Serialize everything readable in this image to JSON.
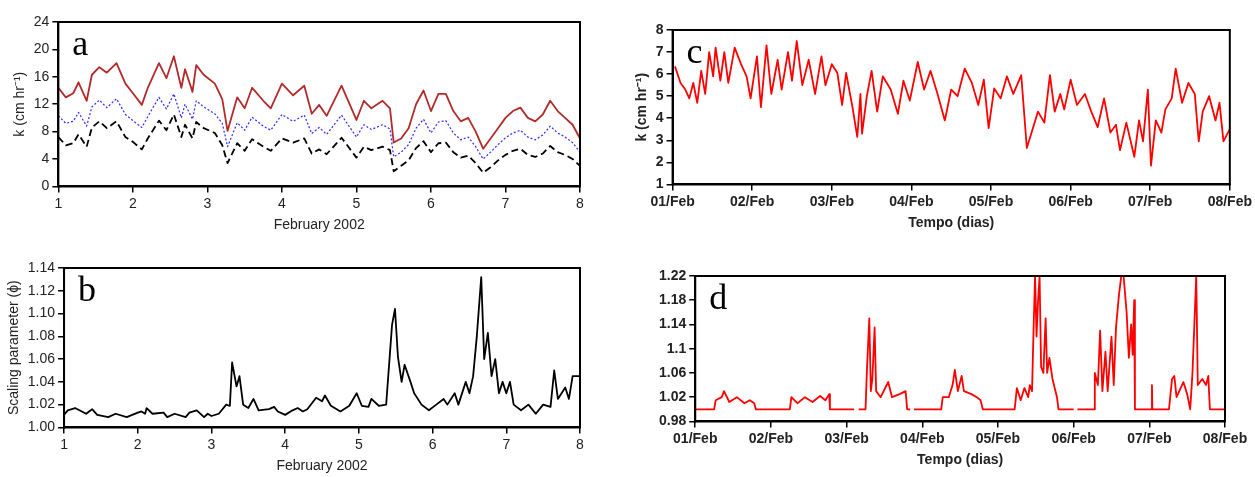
{
  "chart_data": [
    {
      "type": "line",
      "xlabel": "February 2002",
      "ylabel": "k (cm hr⁻¹)",
      "annotations": [
        "a"
      ],
      "xlim": [
        1,
        8
      ],
      "xticks": [
        1,
        2,
        3,
        4,
        5,
        6,
        7,
        8
      ],
      "ylim": [
        0,
        24
      ],
      "yticks": [
        0,
        4,
        8,
        12,
        16,
        20,
        24
      ],
      "grid": false,
      "x": [
        1,
        1.1,
        1.2,
        1.27,
        1.38,
        1.45,
        1.55,
        1.65,
        1.78,
        1.9,
        2,
        2.12,
        2.2,
        2.35,
        2.45,
        2.55,
        2.65,
        2.7,
        2.8,
        2.85,
        2.95,
        3.1,
        3.2,
        3.27,
        3.4,
        3.5,
        3.6,
        3.75,
        3.85,
        4,
        4.15,
        4.3,
        4.4,
        4.5,
        4.6,
        4.8,
        5,
        5.1,
        5.2,
        5.35,
        5.45,
        5.5,
        5.6,
        5.7,
        5.8,
        5.9,
        6,
        6.1,
        6.2,
        6.3,
        6.4,
        6.5,
        6.6,
        6.7,
        6.8,
        6.9,
        7,
        7.1,
        7.2,
        7.3,
        7.4,
        7.5,
        7.6,
        7.7,
        7.8,
        7.9,
        8
      ],
      "series": [
        {
          "color": "#b22a2a",
          "line_style": "solid",
          "values": [
            14.4,
            13,
            13.6,
            15.2,
            12.5,
            16.3,
            17.4,
            16.6,
            18,
            15,
            13.6,
            11.9,
            14.4,
            18,
            15.8,
            19,
            14.4,
            17.1,
            13.8,
            17.7,
            16.3,
            15,
            12.7,
            8.1,
            13,
            11.4,
            14.4,
            12.5,
            11.4,
            15,
            13.3,
            14.7,
            10.6,
            11.9,
            10.3,
            14.7,
            9.7,
            12.5,
            11.4,
            12.5,
            11.4,
            6.4,
            7,
            8.5,
            12,
            14,
            11,
            13.5,
            13.5,
            11,
            9.5,
            10,
            8,
            5.5,
            7,
            8.5,
            10,
            11,
            11.5,
            10,
            9.5,
            10.5,
            12.5,
            11,
            10,
            9,
            7
          ]
        },
        {
          "color": "#2a2aff",
          "line_style": "dotted",
          "values": [
            10.3,
            9.2,
            9.5,
            10.8,
            8.8,
            11.6,
            12.6,
            11.5,
            12.8,
            10.5,
            9.6,
            8.6,
            10.2,
            13,
            11.3,
            13.5,
            10,
            12,
            9.8,
            12.5,
            11.6,
            10.6,
            9.2,
            5.8,
            9.3,
            8.2,
            10.1,
            8.8,
            8.2,
            10.5,
            9.5,
            10.4,
            7.7,
            8.6,
            7.6,
            10.4,
            7.2,
            9,
            8.3,
            9,
            8.4,
            4.3,
            5,
            6.1,
            8.5,
            9.8,
            7.8,
            9.4,
            9.6,
            7.8,
            6.8,
            7.2,
            5.8,
            4,
            5,
            6.1,
            7.1,
            7.8,
            8.2,
            7.2,
            6.8,
            7.5,
            8.8,
            7.8,
            7.2,
            6.4,
            5
          ]
        },
        {
          "color": "#000000",
          "line_style": "dashed",
          "values": [
            7.2,
            6,
            6.3,
            7.6,
            5.8,
            8.6,
            9.5,
            8.5,
            9.5,
            7.2,
            6.5,
            5.4,
            7,
            9.6,
            8.2,
            10.5,
            7.2,
            9,
            7,
            9.4,
            8.5,
            7.8,
            6,
            3.4,
            6.3,
            5.2,
            6.9,
            5.8,
            5.2,
            7,
            6.4,
            7,
            4.8,
            5.4,
            4.7,
            7.1,
            4.2,
            5.8,
            5.3,
            5.8,
            5.3,
            2.2,
            3,
            3.8,
            5.6,
            6.6,
            5,
            6.3,
            6.4,
            5,
            4.2,
            4.5,
            3.4,
            2,
            2.8,
            3.8,
            4.6,
            5.2,
            5.5,
            4.6,
            4.3,
            4.8,
            5.9,
            5,
            4.6,
            4,
            3
          ]
        }
      ]
    },
    {
      "type": "line",
      "xlabel": "February 2002",
      "ylabel": "Scaling parameter (ϕ)",
      "annotations": [
        "b"
      ],
      "xlim": [
        1,
        8
      ],
      "xticks": [
        1,
        2,
        3,
        4,
        5,
        6,
        7,
        8
      ],
      "ylim": [
        1,
        1.14
      ],
      "yticks": [
        {
          "value": 1,
          "label": "1.00"
        },
        1.02,
        1.04,
        1.06,
        1.08,
        {
          "value": 1.1,
          "label": "1.10"
        },
        1.12,
        1.14
      ],
      "grid": false,
      "x": [
        1,
        1.05,
        1.15,
        1.3,
        1.38,
        1.45,
        1.6,
        1.7,
        1.85,
        2,
        2.05,
        2.1,
        2.12,
        2.2,
        2.35,
        2.4,
        2.5,
        2.65,
        2.7,
        2.8,
        2.9,
        2.95,
        3,
        3.1,
        3.2,
        3.25,
        3.28,
        3.34,
        3.38,
        3.43,
        3.5,
        3.57,
        3.64,
        3.78,
        3.85,
        3.9,
        4,
        4.1,
        4.17,
        4.24,
        4.3,
        4.42,
        4.5,
        4.54,
        4.62,
        4.75,
        4.87,
        4.97,
        5.04,
        5.13,
        5.17,
        5.27,
        5.37,
        5.45,
        5.49,
        5.53,
        5.58,
        5.62,
        5.7,
        5.75,
        5.85,
        5.95,
        6.05,
        6.15,
        6.2,
        6.3,
        6.35,
        6.45,
        6.5,
        6.55,
        6.6,
        6.66,
        6.7,
        6.75,
        6.8,
        6.85,
        6.9,
        6.95,
        7,
        7.05,
        7.1,
        7.2,
        7.3,
        7.4,
        7.5,
        7.6,
        7.65,
        7.7,
        7.8,
        7.85,
        7.9,
        8
      ],
      "series": [
        {
          "color": "#000000",
          "values": [
            1.011,
            1.015,
            1.017,
            1.012,
            1.016,
            1.011,
            1.009,
            1.012,
            1.009,
            1.013,
            1.014,
            1.012,
            1.017,
            1.012,
            1.013,
            1.009,
            1.012,
            1.009,
            1.013,
            1.015,
            1.009,
            1.012,
            1.01,
            1.012,
            1.02,
            1.019,
            1.057,
            1.036,
            1.045,
            1.02,
            1.017,
            1.025,
            1.015,
            1.016,
            1.018,
            1.014,
            1.011,
            1.015,
            1.017,
            1.014,
            1.016,
            1.026,
            1.023,
            1.028,
            1.019,
            1.014,
            1.019,
            1.03,
            1.019,
            1.018,
            1.025,
            1.019,
            1.02,
            1.09,
            1.104,
            1.062,
            1.04,
            1.055,
            1.04,
            1.03,
            1.02,
            1.015,
            1.02,
            1.025,
            1.02,
            1.03,
            1.02,
            1.04,
            1.03,
            1.045,
            1.08,
            1.132,
            1.06,
            1.083,
            1.045,
            1.06,
            1.03,
            1.04,
            1.03,
            1.04,
            1.02,
            1.015,
            1.02,
            1.012,
            1.02,
            1.018,
            1.05,
            1.025,
            1.035,
            1.025,
            1.045,
            1.045
          ]
        }
      ]
    },
    {
      "type": "line",
      "xlabel": "Tempo (dias)",
      "ylabel": "k (cm hr⁻¹)",
      "annotations": [
        "c"
      ],
      "xlim": [
        "--02-01",
        "--02-08"
      ],
      "xticks": [
        {
          "value": "--02-01",
          "label": "01/Feb"
        },
        {
          "value": "--02-02",
          "label": "02/Feb"
        },
        {
          "value": "--02-03",
          "label": "03/Feb"
        },
        {
          "value": "--02-04",
          "label": "04/Feb"
        },
        {
          "value": "--02-05",
          "label": "05/Feb"
        },
        {
          "value": "--02-06",
          "label": "06/Feb"
        },
        {
          "value": "--02-07",
          "label": "07/Feb"
        },
        {
          "value": "--02-08",
          "label": "08/Feb"
        }
      ],
      "ylim": [
        1,
        8
      ],
      "yticks": [
        1,
        2,
        3,
        4,
        5,
        6,
        7,
        8
      ],
      "grid": false,
      "x": [
        "--02-01T00:43",
        "--02-01T02:24",
        "--02-01T03:50",
        "--02-01T05:02",
        "--02-01T06:14",
        "--02-01T07:26",
        "--02-01T08:38",
        "--02-01T09:50",
        "--02-01T11:02",
        "--02-01T12:14",
        "--02-01T12:58",
        "--02-01T14:24",
        "--02-01T15:36",
        "--02-01T16:48",
        "--02-01T18:43",
        "--02-01T20:38",
        "--02-01T22:19",
        "--02-01T23:31",
        "--02-02T01:26",
        "--02-02T02:38",
        "--02-02T04:19",
        "--02-02T05:46",
        "--02-02T07:41",
        "--02-02T08:53",
        "--02-02T10:48",
        "--02-02T12:00",
        "--02-02T13:26",
        "--02-02T15:07",
        "--02-02T17:02",
        "--02-02T18:58",
        "--02-02T20:53",
        "--02-02T22:05",
        "--02-03T00:00",
        "--02-03T01:41",
        "--02-03T03:07",
        "--02-03T04:19",
        "--02-03T06:14",
        "--02-03T07:41",
        "--02-03T08:38",
        "--02-03T09:07",
        "--02-03T10:34",
        "--02-03T12:00",
        "--02-03T13:41",
        "--02-03T15:22",
        "--02-03T17:46",
        "--02-03T19:55",
        "--02-03T21:36",
        "--02-03T23:31",
        "--02-04T01:55",
        "--02-04T03:50",
        "--02-04T05:46",
        "--02-04T07:41",
        "--02-04T10:05",
        "--02-04T12:00",
        "--02-04T13:55",
        "--02-04T16:05",
        "--02-04T18:14",
        "--02-04T20:10",
        "--02-04T21:50",
        "--02-04T23:17",
        "--02-05T00:58",
        "--02-05T02:53",
        "--02-05T04:48",
        "--02-05T06:43",
        "--02-05T09:07",
        "--02-05T10:48",
        "--02-05T12:14",
        "--02-05T14:10",
        "--02-05T16:05",
        "--02-05T17:46",
        "--02-05T19:12",
        "--02-05T20:53",
        "--02-05T22:05",
        "--02-06T00:00",
        "--02-06T01:55",
        "--02-06T04:19",
        "--02-06T06:14",
        "--02-06T08:10",
        "--02-06T10:05",
        "--02-06T12:00",
        "--02-06T13:41",
        "--02-06T14:53",
        "--02-06T16:48",
        "--02-06T19:12",
        "--02-06T20:38",
        "--02-06T21:50",
        "--02-06T23:17",
        "--02-07T00:14",
        "--02-07T01:41",
        "--02-07T03:22",
        "--02-07T04:34",
        "--02-07T06:29",
        "--02-07T07:41",
        "--02-07T09:36",
        "--02-07T11:31",
        "--02-07T13:26",
        "--02-07T14:38",
        "--02-07T15:50",
        "--02-07T17:46",
        "--02-07T19:41",
        "--02-07T20:53",
        "--02-07T22:05",
        "--02-08T00:00"
      ],
      "series": [
        {
          "color": "#ff0000",
          "values": [
            6.35,
            5.6,
            5.3,
            4.9,
            5.6,
            4.7,
            6.15,
            5.1,
            7,
            5.9,
            7.2,
            5.7,
            7,
            5.6,
            7.2,
            6.45,
            5.9,
            4.9,
            6.8,
            4.5,
            7.3,
            5.1,
            6.65,
            5.3,
            7,
            5.7,
            7.5,
            5.5,
            6.65,
            5.1,
            6.8,
            5.5,
            6.45,
            6.05,
            4.6,
            6.05,
            4.5,
            3.15,
            5.1,
            3.3,
            5,
            6.15,
            4.3,
            5.9,
            5.3,
            4.2,
            5.7,
            4.8,
            6.55,
            5.3,
            6.15,
            5.2,
            3.9,
            5.3,
            5,
            6.25,
            5.6,
            4.6,
            5.75,
            3.55,
            5.35,
            4.9,
            5.9,
            5.1,
            5.95,
            2.65,
            3.35,
            4.3,
            3.8,
            5.95,
            4.3,
            5.1,
            4.4,
            5.75,
            4.6,
            5.1,
            4.3,
            3.6,
            4.9,
            3.35,
            3.7,
            2.55,
            3.8,
            2.25,
            3.9,
            2.95,
            5.3,
            1.85,
            3.9,
            3.35,
            4.4,
            4.9,
            6.25,
            4.7,
            5.6,
            5.1,
            2.95,
            4.3,
            5,
            3.9,
            4.7,
            2.95,
            3.5
          ]
        }
      ]
    },
    {
      "type": "line",
      "xlabel": "Tempo (dias)",
      "annotations": [
        "d"
      ],
      "xlim": [
        "--02-01",
        "--02-08"
      ],
      "xticks": [
        {
          "value": "--02-01",
          "label": "01/Feb"
        },
        {
          "value": "--02-02",
          "label": "02/Feb"
        },
        {
          "value": "--02-03",
          "label": "03/Feb"
        },
        {
          "value": "--02-04",
          "label": "04/Feb"
        },
        {
          "value": "--02-05",
          "label": "05/Feb"
        },
        {
          "value": "--02-06",
          "label": "06/Feb"
        },
        {
          "value": "--02-07",
          "label": "07/Feb"
        },
        {
          "value": "--02-08",
          "label": "08/Feb"
        }
      ],
      "ylim": [
        0.98,
        1.22
      ],
      "yticks": [
        0.98,
        1.02,
        1.06,
        1.1,
        1.14,
        1.18,
        1.22
      ],
      "grid": false,
      "x": [
        "--02-01T00:00",
        "--02-01T06:00",
        "--02-01T06:29",
        "--02-01T08:24",
        "--02-01T09:07",
        "--02-01T10:48",
        "--02-01T13:12",
        "--02-01T15:36",
        "--02-01T17:17",
        "--02-01T18:43",
        "--02-01T19:12",
        "--02-02T06:00",
        "--02-02T06:29",
        "--02-02T08:24",
        "--02-02T10:48",
        "--02-02T13:12",
        "--02-02T15:36",
        "--02-02T17:17",
        "--02-02T18:29",
        "--02-02T18:43",
        "--02-03T02:24",
        "--02-03T03:07",
        "--02-03T03:50",
        "--02-03T06:00",
        "--02-03T06:29",
        "--02-03T07:12",
        "--02-03T07:41",
        "--02-03T08:10",
        "--02-03T08:53",
        "--02-03T09:22",
        "--02-03T10:48",
        "--02-03T13:12",
        "--02-03T14:24",
        "--02-03T16:48",
        "--02-03T18:43",
        "--02-03T19:12",
        "--02-03T20:10",
        "--02-03T20:53",
        "--02-03T21:22",
        "--02-04T06:00",
        "--02-04T06:29",
        "--02-04T08:24",
        "--02-04T09:36",
        "--02-04T10:19",
        "--02-04T11:17",
        "--02-04T12:29",
        "--02-04T13:12",
        "--02-04T15:36",
        "--02-04T17:17",
        "--02-04T18:29",
        "--02-04T19:12",
        "--02-05T05:17",
        "--02-05T06:00",
        "--02-05T07:12",
        "--02-05T08:24",
        "--02-05T09:36",
        "--02-05T10:05",
        "--02-05T10:48",
        "--02-05T11:17",
        "--02-05T11:46",
        "--02-05T12:14",
        "--02-05T12:43",
        "--02-05T13:12",
        "--02-05T13:41",
        "--02-05T14:24",
        "--02-05T15:07",
        "--02-05T15:36",
        "--02-05T16:19",
        "--02-05T17:17",
        "--02-05T18:43",
        "--02-05T19:12",
        "--02-06T00:00",
        "--02-06T00:29",
        "--02-06T01:12",
        "--02-06T06:29",
        "--02-06T06:43",
        "--02-06T07:41",
        "--02-06T08:24",
        "--02-06T09:07",
        "--02-06T10:05",
        "--02-06T10:48",
        "--02-06T12:00",
        "--02-06T12:43",
        "--02-06T13:26",
        "--02-06T14:24",
        "--02-06T15:07",
        "--02-06T15:50",
        "--02-06T16:48",
        "--02-06T17:31",
        "--02-06T18:14",
        "--02-06T18:43",
        "--02-06T19:12",
        "--02-06T19:26",
        "--02-07T00:43",
        "--02-07T00:50",
        "--02-07T00:58",
        "--02-07T06:14",
        "--02-07T07:12",
        "--02-07T07:55",
        "--02-07T08:38",
        "--02-07T10:48",
        "--02-07T12:00",
        "--02-07T12:58",
        "--02-07T13:41",
        "--02-07T14:53",
        "--02-07T15:22",
        "--02-07T16:48",
        "--02-07T18:00",
        "--02-07T18:43",
        "--02-07T19:12",
        "--02-08T00:00"
      ],
      "series": [
        {
          "color": "#ff0000",
          "values": [
            1,
            1,
            1.015,
            1.02,
            1.03,
            1.012,
            1.02,
            1.01,
            1.015,
            1.01,
            1,
            1,
            1.02,
            1.01,
            1.02,
            1.012,
            1.022,
            1.015,
            1.025,
            1,
            1,
            null,
            1,
            1,
            1.07,
            1.15,
            1.03,
            1.05,
            1.135,
            1.03,
            1.02,
            1.045,
            1.02,
            1.025,
            1.03,
            1,
            1,
            null,
            1,
            1,
            1.02,
            1.02,
            1.04,
            1.065,
            1.03,
            1.055,
            1.03,
            1.025,
            1.02,
            1.015,
            1,
            1,
            1.035,
            1.015,
            1.035,
            1.02,
            1.04,
            1.03,
            1.13,
            1.22,
            1.12,
            1.18,
            1.22,
            1.07,
            1.06,
            1.15,
            1.06,
            1.085,
            1.05,
            1.02,
            1,
            1,
            null,
            1,
            1,
            1.06,
            1.04,
            1.13,
            1.03,
            1.095,
            1.03,
            1.12,
            1.04,
            1.135,
            1.19,
            1.22,
            1.22,
            1.16,
            1.085,
            1.14,
            1.09,
            1.18,
            1,
            1,
            1.04,
            1,
            1,
            1.05,
            1.055,
            1.02,
            1.045,
            1.025,
            1,
            1.06,
            1.22,
            1.04,
            1.05,
            1.04,
            1.055,
            1,
            1
          ]
        }
      ]
    }
  ]
}
